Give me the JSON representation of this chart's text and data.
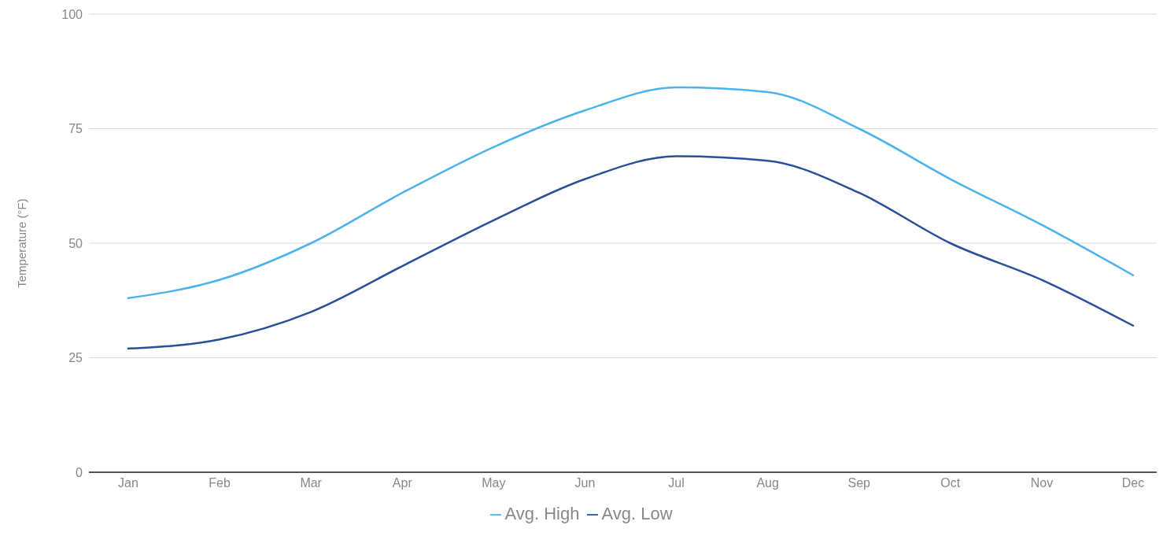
{
  "chart_data": {
    "type": "line",
    "ylabel": "Temperature (°F)",
    "categories": [
      "Jan",
      "Feb",
      "Mar",
      "Apr",
      "May",
      "Jun",
      "Jul",
      "Aug",
      "Sep",
      "Oct",
      "Nov",
      "Dec"
    ],
    "series": [
      {
        "name": "Avg. High",
        "color": "#4ab3ec",
        "values": [
          38,
          42,
          50,
          61,
          71,
          79,
          84,
          83,
          75,
          64,
          54,
          43
        ]
      },
      {
        "name": "Avg. Low",
        "color": "#2a4f9a",
        "values": [
          27,
          29,
          35,
          45,
          55,
          64,
          69,
          68,
          61,
          50,
          42,
          32
        ]
      }
    ],
    "ylim": [
      0,
      100
    ],
    "yticks": [
      0,
      25,
      50,
      75,
      100
    ],
    "grid": "y",
    "legend": "bottom",
    "line_style": "solid"
  }
}
